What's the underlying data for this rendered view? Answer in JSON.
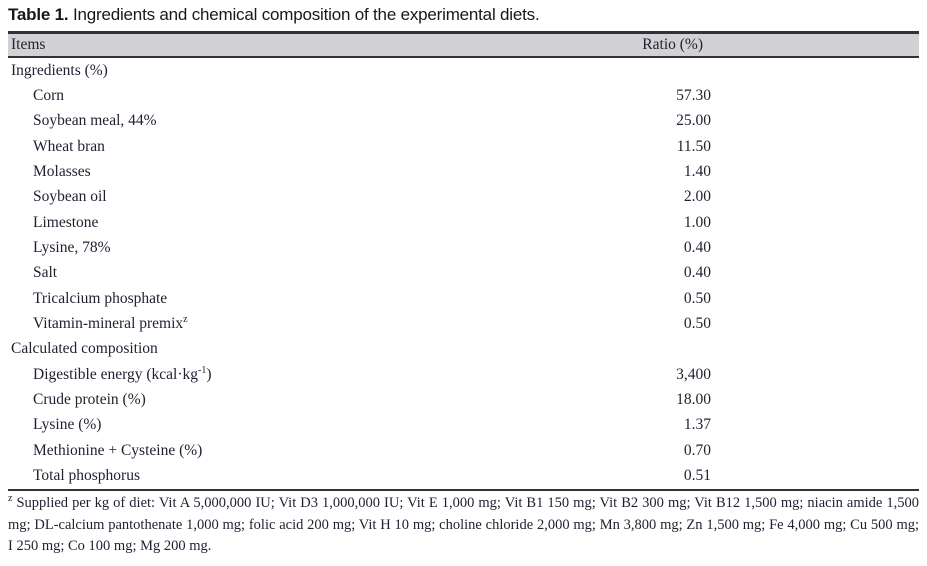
{
  "title": {
    "prefix": "Table 1.",
    "text": " Ingredients and chemical composition of the experimental diets."
  },
  "table": {
    "columns": {
      "items": "Items",
      "ratio": "Ratio (%)"
    },
    "rows": [
      {
        "label": "Ingredients (%)",
        "value": "",
        "indent": false
      },
      {
        "label": "Corn",
        "value": "57.30",
        "indent": true
      },
      {
        "label": "Soybean meal, 44%",
        "value": "25.00",
        "indent": true
      },
      {
        "label": "Wheat bran",
        "value": "11.50",
        "indent": true
      },
      {
        "label": "Molasses",
        "value": "1.40",
        "indent": true
      },
      {
        "label": "Soybean oil",
        "value": "2.00",
        "indent": true
      },
      {
        "label": "Limestone",
        "value": "1.00",
        "indent": true
      },
      {
        "label": "Lysine, 78%",
        "value": "0.40",
        "indent": true
      },
      {
        "label": "Salt",
        "value": "0.40",
        "indent": true
      },
      {
        "label": "Tricalcium phosphate",
        "value": "0.50",
        "indent": true
      },
      {
        "label": "Vitamin-mineral premix",
        "sup": "z",
        "label_post": "",
        "value": "0.50",
        "indent": true
      },
      {
        "label": "Calculated composition",
        "value": "",
        "indent": false
      },
      {
        "label": "Digestible energy (kcal·kg",
        "sup": "-1",
        "label_post": ")",
        "value": "3,400",
        "indent": true
      },
      {
        "label": "Crude protein (%)",
        "value": "18.00",
        "indent": true
      },
      {
        "label": "Lysine (%)",
        "value": "1.37",
        "indent": true
      },
      {
        "label": "Methionine + Cysteine (%)",
        "value": "0.70",
        "indent": true
      },
      {
        "label": "Total phosphorus",
        "value": "0.51",
        "indent": true
      }
    ]
  },
  "footnote": {
    "sup": "z",
    "text": " Supplied per kg of diet: Vit A 5,000,000 IU; Vit D3 1,000,000 IU; Vit E 1,000 mg; Vit B1 150 mg; Vit B2 300 mg; Vit B12 1,500 mg; niacin amide 1,500 mg; DL-calcium pantothenate 1,000 mg; folic acid 200 mg; Vit H 10 mg; choline chloride 2,000 mg; Mn 3,800 mg; Zn 1,500 mg; Fe 4,000 mg; Cu 500 mg; I 250 mg; Co 100 mg; Mg 200 mg."
  },
  "colors": {
    "header_bg": "#d2d2d4",
    "rule": "#31313b",
    "text": "#1d2130"
  }
}
